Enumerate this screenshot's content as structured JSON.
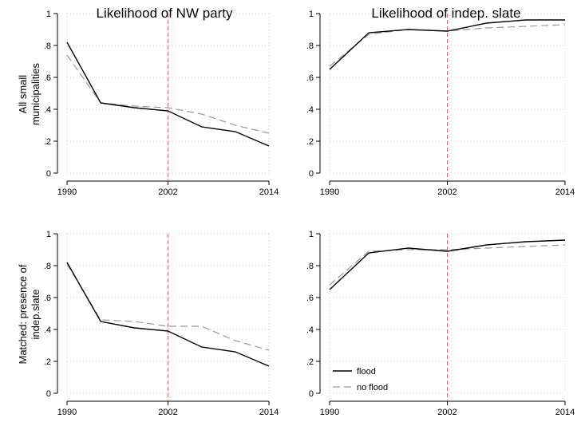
{
  "col_titles": [
    "Likelihood of NW party",
    "Likelihood of indep. slate"
  ],
  "row_labels": [
    [
      "All small",
      "municipalities"
    ],
    [
      "Matched: presence of",
      "indep.slate"
    ]
  ],
  "colors": {
    "flood": "#000000",
    "no_flood": "#999999",
    "vline": "#e06070",
    "grid": "#c8c8c8"
  },
  "legend": {
    "flood": "flood",
    "no_flood": "no flood"
  },
  "chart_data": [
    {
      "type": "line",
      "title": "Likelihood of NW party",
      "row_label": "All small municipalities",
      "x": [
        1990,
        1994,
        1998,
        2002,
        2006,
        2010,
        2014
      ],
      "xticks": [
        1990,
        2002,
        2014
      ],
      "xtick_labels": [
        "1990",
        "2002",
        "2014"
      ],
      "ylim": [
        0,
        1
      ],
      "yticks": [
        0,
        0.2,
        0.4,
        0.6,
        0.8,
        1
      ],
      "ytick_labels": [
        "0",
        ".2",
        ".4",
        ".6",
        ".8",
        "1"
      ],
      "vline": 2002,
      "grid": true,
      "series": [
        {
          "name": "flood",
          "style": "solid",
          "values": [
            0.82,
            0.44,
            0.41,
            0.39,
            0.29,
            0.26,
            0.17
          ]
        },
        {
          "name": "no flood",
          "style": "dashed",
          "values": [
            0.74,
            0.44,
            0.42,
            0.41,
            0.37,
            0.3,
            0.25
          ]
        }
      ]
    },
    {
      "type": "line",
      "title": "Likelihood of indep. slate",
      "row_label": "All small municipalities",
      "x": [
        1990,
        1994,
        1998,
        2002,
        2006,
        2010,
        2014
      ],
      "xticks": [
        1990,
        2002,
        2014
      ],
      "xtick_labels": [
        "1990",
        "2002",
        "2014"
      ],
      "ylim": [
        0,
        1
      ],
      "yticks": [
        0,
        0.2,
        0.4,
        0.6,
        0.8,
        1
      ],
      "ytick_labels": [
        "0",
        ".2",
        ".4",
        ".6",
        ".8",
        "1"
      ],
      "vline": 2002,
      "grid": true,
      "series": [
        {
          "name": "flood",
          "style": "solid",
          "values": [
            0.65,
            0.88,
            0.9,
            0.89,
            0.94,
            0.96,
            0.96
          ]
        },
        {
          "name": "no flood",
          "style": "dashed",
          "values": [
            0.67,
            0.87,
            0.9,
            0.89,
            0.91,
            0.92,
            0.93
          ]
        }
      ]
    },
    {
      "type": "line",
      "title": "",
      "row_label": "Matched: presence of indep.slate",
      "x": [
        1990,
        1994,
        1998,
        2002,
        2006,
        2010,
        2014
      ],
      "xticks": [
        1990,
        2002,
        2014
      ],
      "xtick_labels": [
        "1990",
        "2002",
        "2014"
      ],
      "ylim": [
        0,
        1
      ],
      "yticks": [
        0,
        0.2,
        0.4,
        0.6,
        0.8,
        1
      ],
      "ytick_labels": [
        "0",
        ".2",
        ".4",
        ".6",
        ".8",
        "1"
      ],
      "vline": 2002,
      "grid": true,
      "series": [
        {
          "name": "flood",
          "style": "solid",
          "values": [
            0.82,
            0.45,
            0.41,
            0.39,
            0.29,
            0.26,
            0.17
          ]
        },
        {
          "name": "no flood",
          "style": "dashed",
          "values": [
            0.81,
            0.46,
            0.45,
            0.42,
            0.42,
            0.33,
            0.27
          ]
        }
      ]
    },
    {
      "type": "line",
      "title": "",
      "row_label": "Matched: presence of indep.slate",
      "x": [
        1990,
        1994,
        1998,
        2002,
        2006,
        2010,
        2014
      ],
      "xticks": [
        1990,
        2002,
        2014
      ],
      "xtick_labels": [
        "1990",
        "2002",
        "2014"
      ],
      "ylim": [
        0,
        1
      ],
      "yticks": [
        0,
        0.2,
        0.4,
        0.6,
        0.8,
        1
      ],
      "ytick_labels": [
        "0",
        ".2",
        ".4",
        ".6",
        ".8",
        "1"
      ],
      "vline": 2002,
      "grid": true,
      "legend_position": "bottom-left",
      "series": [
        {
          "name": "flood",
          "style": "solid",
          "values": [
            0.65,
            0.88,
            0.91,
            0.89,
            0.93,
            0.95,
            0.96
          ]
        },
        {
          "name": "no flood",
          "style": "dashed",
          "values": [
            0.68,
            0.89,
            0.9,
            0.9,
            0.91,
            0.92,
            0.93
          ]
        }
      ]
    }
  ]
}
